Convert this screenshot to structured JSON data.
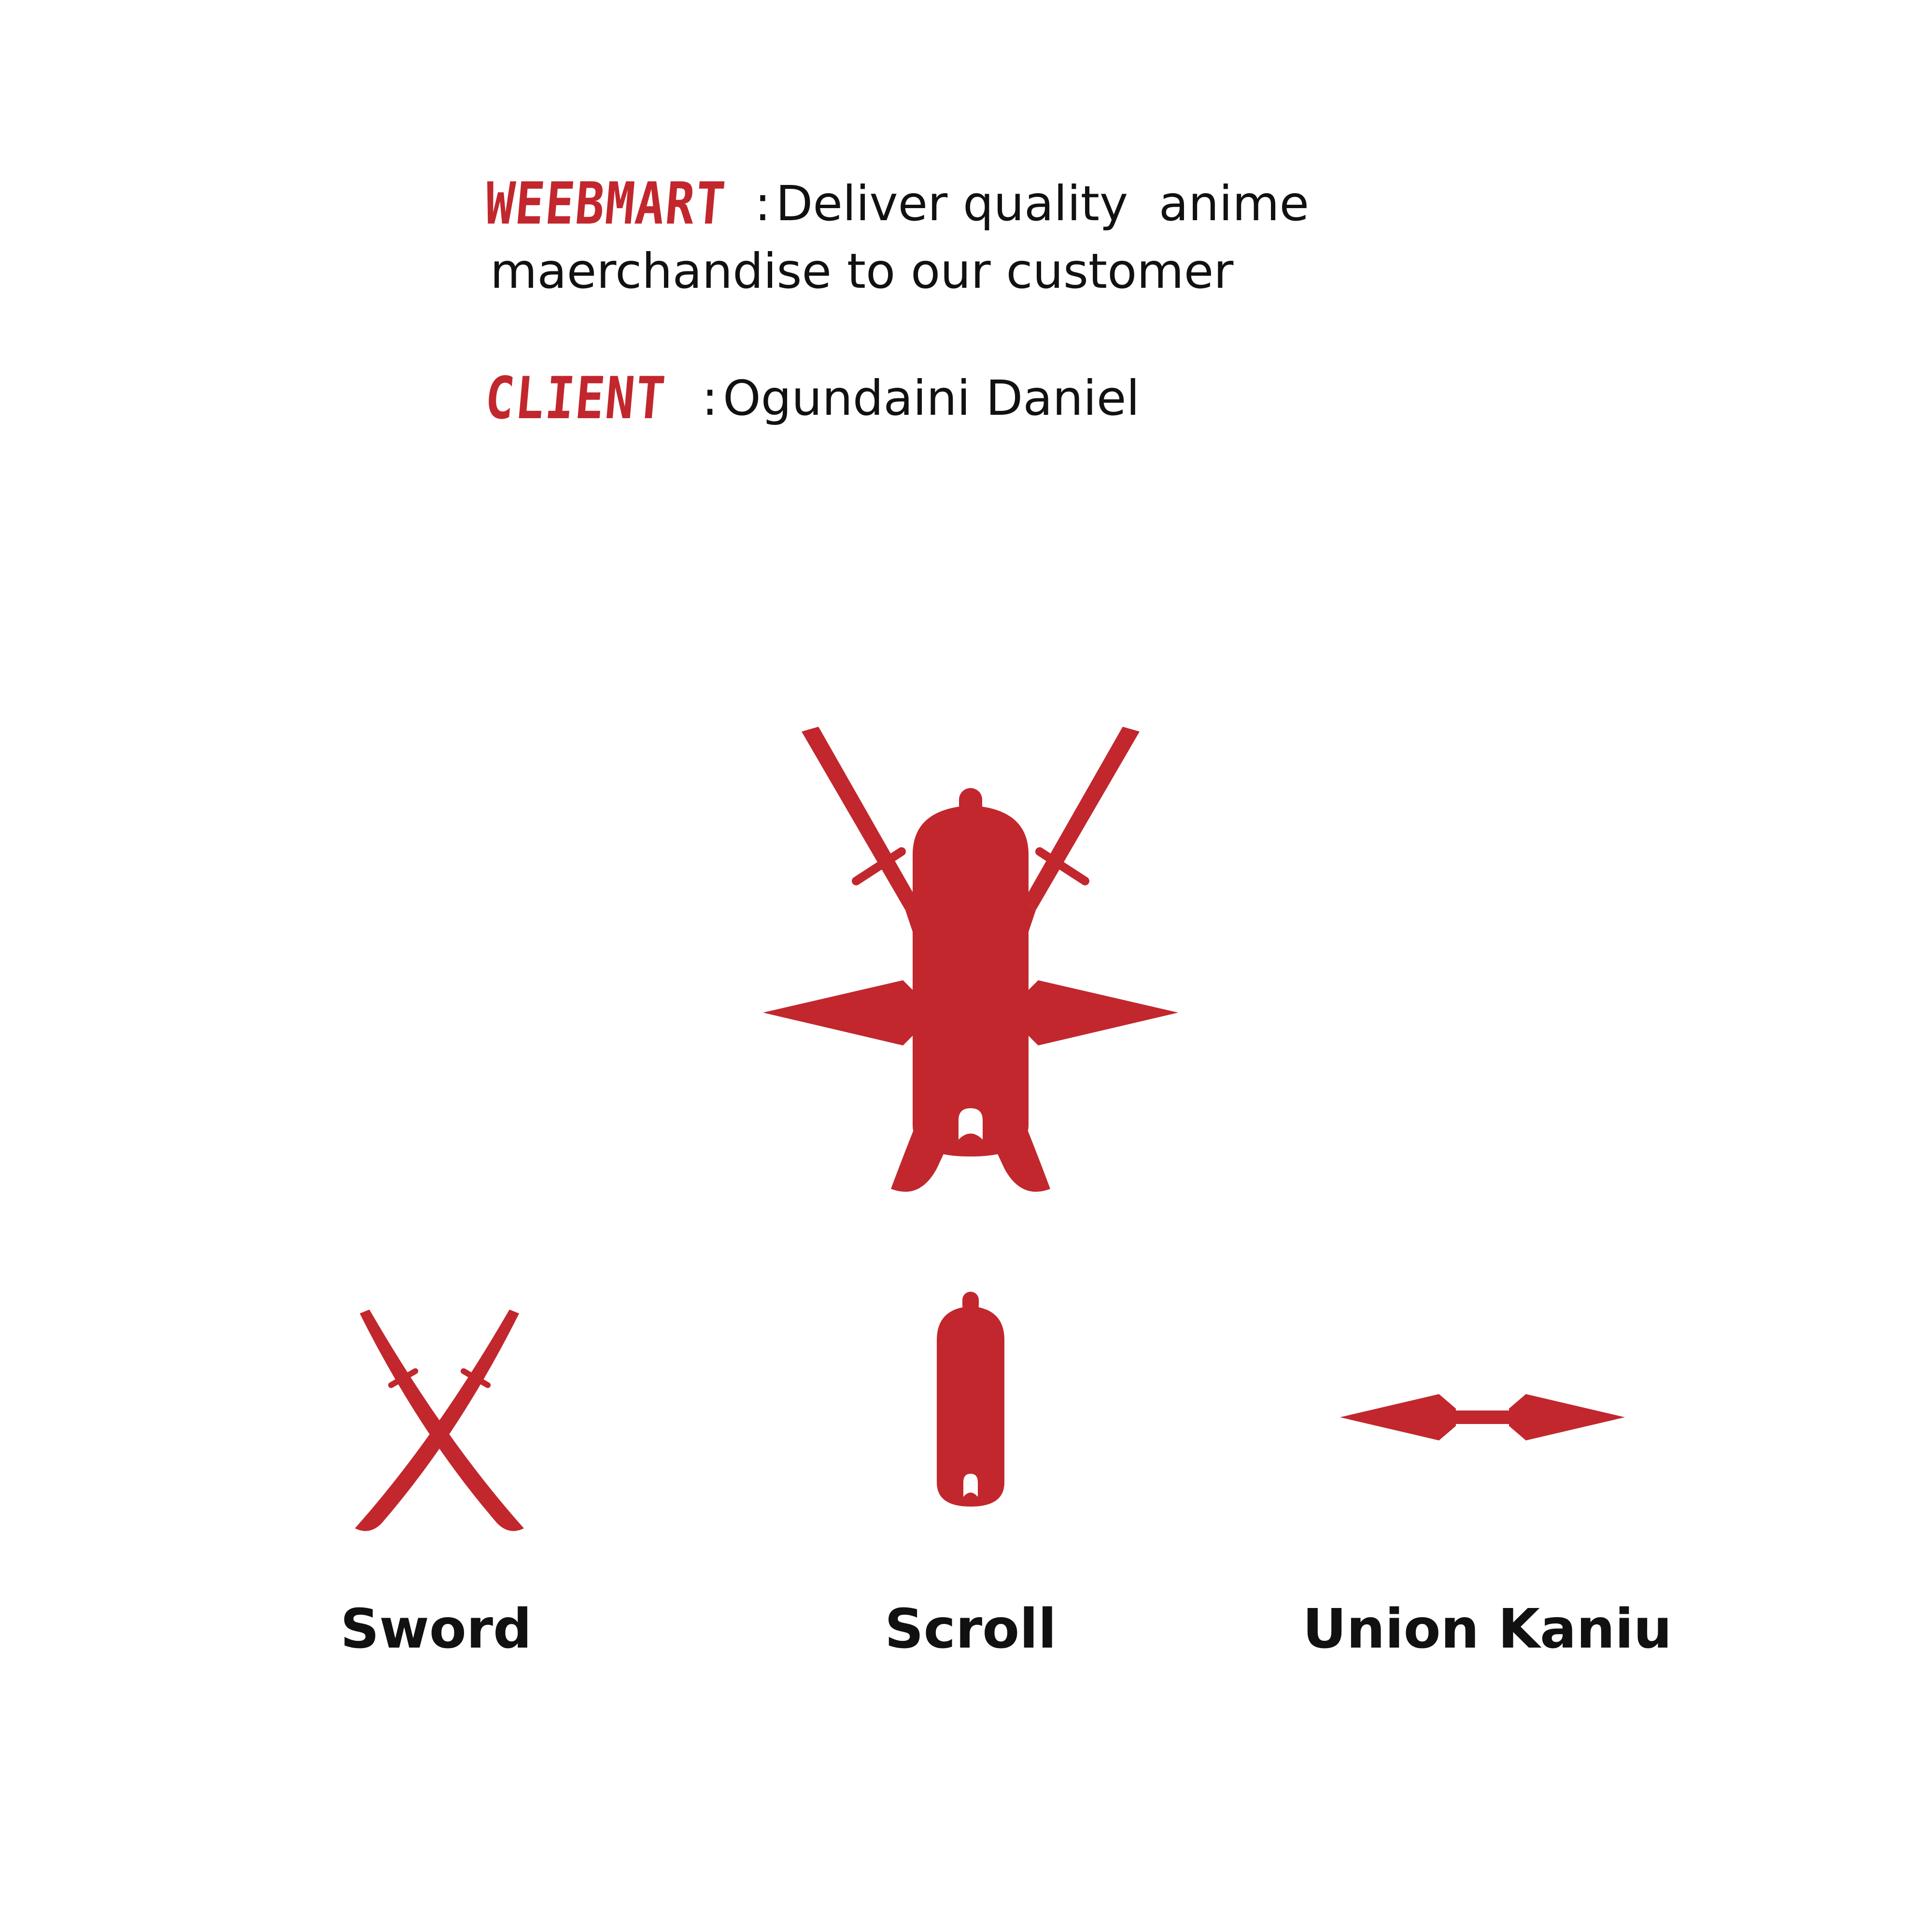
{
  "colors": {
    "brand_red": "#C1272D",
    "text": "#111111",
    "background": "#FFFFFF"
  },
  "header": {
    "brand_label": "WEEBMART",
    "separator": ":",
    "tagline_part1": "Deliver quality  anime",
    "tagline_part2": "maerchandise to our customer",
    "client_label": "CLIENT",
    "client_separator": ":",
    "client_name": "Ogundaini Daniel"
  },
  "logo": {
    "emblem_icon": "crossed-swords-scroll-kunai-icon",
    "components": [
      {
        "icon": "crossed-swords-icon",
        "label": "Sword"
      },
      {
        "icon": "scroll-icon",
        "label": "Scroll"
      },
      {
        "icon": "kunai-icon",
        "label": "Union Kaniu"
      }
    ]
  }
}
